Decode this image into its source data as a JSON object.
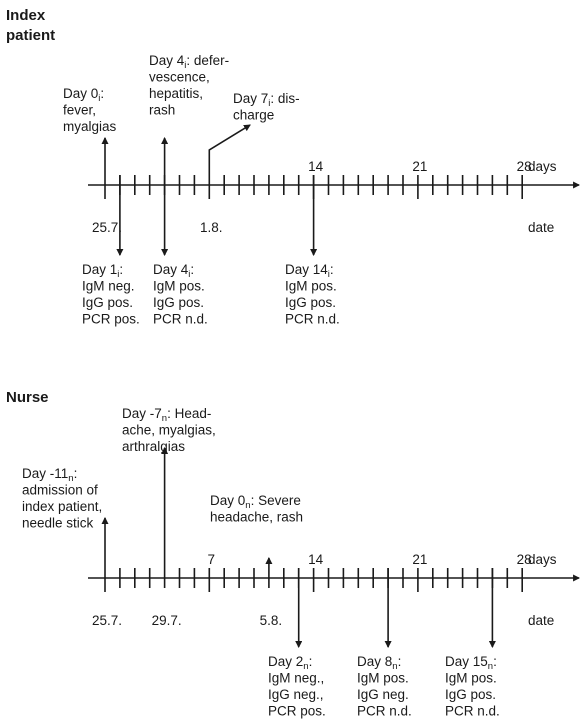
{
  "panels": [
    {
      "title_lines": [
        "Index",
        "patient"
      ],
      "unit_days": "days",
      "unit_date": "date",
      "day_labels": [
        {
          "day": 14,
          "text": "14"
        },
        {
          "day": 21,
          "text": "21"
        },
        {
          "day": 28,
          "text": "28"
        }
      ],
      "date_labels": [
        {
          "day": 0,
          "text": "25.7."
        },
        {
          "day": 7,
          "text": "1.8."
        }
      ],
      "events_above": [
        {
          "day": 0,
          "lines": [
            [
              {
                "t": "Day 0"
              },
              {
                "t": "i",
                "sub": true
              },
              {
                "t": ":"
              }
            ],
            [
              {
                "t": "fever,"
              }
            ],
            [
              {
                "t": "myalgias"
              }
            ]
          ]
        },
        {
          "day": 4,
          "lines": [
            [
              {
                "t": "Day 4"
              },
              {
                "t": "i",
                "sub": true
              },
              {
                "t": ": defer-"
              }
            ],
            [
              {
                "t": "vescence,"
              }
            ],
            [
              {
                "t": "hepatitis,"
              }
            ],
            [
              {
                "t": "rash"
              }
            ]
          ]
        },
        {
          "day": 7,
          "diagonal": true,
          "lines": [
            [
              {
                "t": "Day 7"
              },
              {
                "t": "i",
                "sub": true
              },
              {
                "t": ": dis-"
              }
            ],
            [
              {
                "t": "charge"
              }
            ]
          ]
        }
      ],
      "events_below": [
        {
          "day": 1,
          "lines": [
            [
              {
                "t": "Day 1"
              },
              {
                "t": "i",
                "sub": true
              },
              {
                "t": ":"
              }
            ],
            [
              {
                "t": "IgM neg."
              }
            ],
            [
              {
                "t": "IgG pos."
              }
            ],
            [
              {
                "t": "PCR pos."
              }
            ]
          ]
        },
        {
          "day": 4,
          "lines": [
            [
              {
                "t": "Day 4"
              },
              {
                "t": "i",
                "sub": true
              },
              {
                "t": ":"
              }
            ],
            [
              {
                "t": "IgM pos."
              }
            ],
            [
              {
                "t": "IgG pos."
              }
            ],
            [
              {
                "t": "PCR n.d."
              }
            ]
          ]
        },
        {
          "day": 14,
          "lines": [
            [
              {
                "t": "Day 14"
              },
              {
                "t": "i",
                "sub": true
              },
              {
                "t": ":"
              }
            ],
            [
              {
                "t": "IgM pos."
              }
            ],
            [
              {
                "t": "IgG pos."
              }
            ],
            [
              {
                "t": "PCR n.d."
              }
            ]
          ]
        }
      ]
    },
    {
      "title_lines": [
        "Nurse"
      ],
      "unit_days": "days",
      "unit_date": "date",
      "day_labels": [
        {
          "day": 7,
          "text": "7"
        },
        {
          "day": 14,
          "text": "14"
        },
        {
          "day": 21,
          "text": "21"
        },
        {
          "day": 28,
          "text": "28"
        }
      ],
      "date_labels": [
        {
          "day": 0,
          "text": "25.7."
        },
        {
          "day": 4,
          "text": "29.7."
        },
        {
          "day": 11,
          "text": "5.8."
        }
      ],
      "events_above": [
        {
          "day": 0,
          "lines": [
            [
              {
                "t": "Day -11"
              },
              {
                "t": "n",
                "sub": true
              },
              {
                "t": ":"
              }
            ],
            [
              {
                "t": "admission of"
              }
            ],
            [
              {
                "t": "index patient,"
              }
            ],
            [
              {
                "t": "needle stick"
              }
            ]
          ]
        },
        {
          "day": 4,
          "lines": [
            [
              {
                "t": "Day -7"
              },
              {
                "t": "n",
                "sub": true
              },
              {
                "t": ": Head-"
              }
            ],
            [
              {
                "t": "ache, myalgias,"
              }
            ],
            [
              {
                "t": "arthralgias"
              }
            ]
          ]
        },
        {
          "day": 11,
          "lines": [
            [
              {
                "t": "Day 0"
              },
              {
                "t": "n",
                "sub": true
              },
              {
                "t": ": Severe"
              }
            ],
            [
              {
                "t": "headache, rash"
              }
            ]
          ]
        }
      ],
      "events_below": [
        {
          "day": 13,
          "lines": [
            [
              {
                "t": "Day 2"
              },
              {
                "t": "n",
                "sub": true
              },
              {
                "t": ":"
              }
            ],
            [
              {
                "t": "IgM neg.,"
              }
            ],
            [
              {
                "t": "IgG neg.,"
              }
            ],
            [
              {
                "t": "PCR pos."
              }
            ]
          ]
        },
        {
          "day": 19,
          "lines": [
            [
              {
                "t": "Day 8"
              },
              {
                "t": "n",
                "sub": true
              },
              {
                "t": ":"
              }
            ],
            [
              {
                "t": "IgM pos."
              }
            ],
            [
              {
                "t": "IgG neg."
              }
            ],
            [
              {
                "t": "PCR n.d."
              }
            ]
          ]
        },
        {
          "day": 26,
          "lines": [
            [
              {
                "t": "Day 15"
              },
              {
                "t": "n",
                "sub": true
              },
              {
                "t": ":"
              }
            ],
            [
              {
                "t": "IgM pos."
              }
            ],
            [
              {
                "t": "IgG pos."
              }
            ],
            [
              {
                "t": "PCR n.d."
              }
            ]
          ]
        }
      ]
    }
  ]
}
